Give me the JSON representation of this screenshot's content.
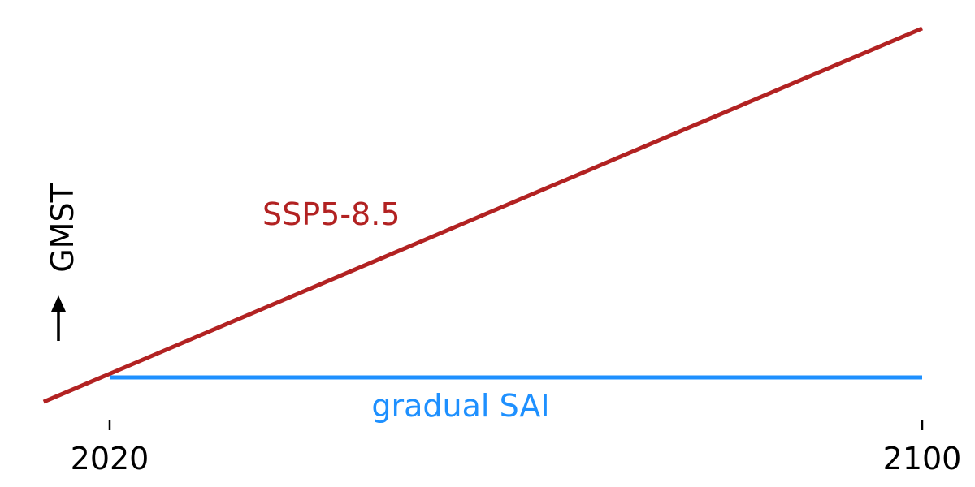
{
  "chart_data": {
    "type": "line",
    "xlabel": "",
    "ylabel": "GMST",
    "x_ticks": [
      {
        "value": 2020,
        "label": "2020"
      },
      {
        "value": 2100,
        "label": "2100"
      }
    ],
    "xlim": [
      2013.5,
      2100
    ],
    "ylim": [
      0,
      1
    ],
    "grid": false,
    "series": [
      {
        "name": "SSP5-8.5",
        "color": "#b22222",
        "x": [
          2013.5,
          2100
        ],
        "y": [
          -0.07,
          1.0
        ]
      },
      {
        "name": "gradual SAI",
        "color": "#1e90ff",
        "x": [
          2020,
          2100
        ],
        "y": [
          0.0,
          0.0
        ]
      }
    ],
    "ylabel_arrow": "up"
  }
}
